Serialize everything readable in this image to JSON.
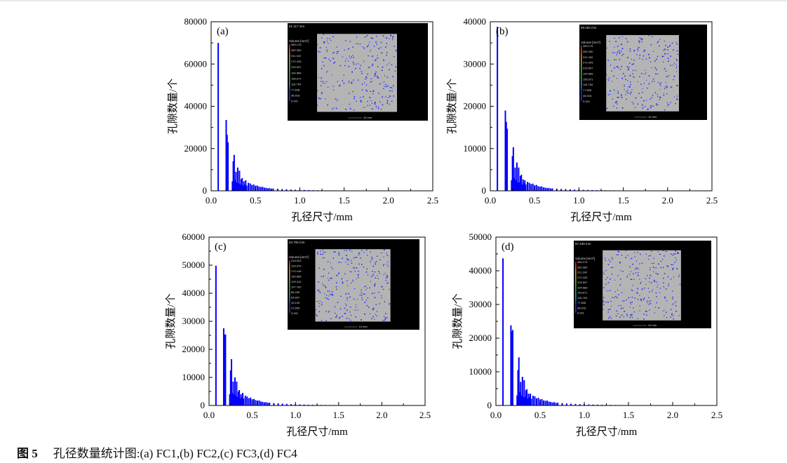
{
  "figure": {
    "caption_label": "图 5",
    "caption_text": "孔径数量统计图:(a) FC1,(b) FC2,(c) FC3,(d) FC4"
  },
  "colors": {
    "bar": "#0000ff",
    "axis": "#000000",
    "inset_bg": "#000000",
    "sample": "#b4b4b4",
    "pore": "#1e2cff"
  },
  "chart_data": [
    {
      "type": "bar",
      "panel_label": "(a)",
      "xlabel": "孔径尺寸/mm",
      "ylabel": "孔隙数量/个",
      "xlim": [
        0,
        2.5
      ],
      "ylim": [
        0,
        80000
      ],
      "xticks": [
        "0.0",
        "0.5",
        "1.0",
        "1.5",
        "2.0",
        "2.5"
      ],
      "yticks": [
        "0",
        "20000",
        "40000",
        "60000",
        "80000"
      ],
      "x": [
        0.08,
        0.17,
        0.18,
        0.19,
        0.24,
        0.25,
        0.26,
        0.27,
        0.28,
        0.29,
        0.3,
        0.31,
        0.32,
        0.33,
        0.34,
        0.35,
        0.36,
        0.37,
        0.38,
        0.39,
        0.4,
        0.42,
        0.44,
        0.46,
        0.48,
        0.5,
        0.52,
        0.54,
        0.56,
        0.58,
        0.6,
        0.62,
        0.64,
        0.66,
        0.68,
        0.7,
        0.75,
        0.8,
        0.85,
        0.9,
        0.95,
        1.0,
        1.05,
        1.1,
        1.15,
        1.2,
        1.25,
        1.3,
        1.35,
        1.4,
        1.45,
        1.5,
        1.6,
        1.7,
        1.8,
        1.9,
        2.0,
        2.1,
        2.2,
        2.3,
        2.4,
        2.5
      ],
      "values": [
        70000,
        33500,
        26500,
        23000,
        4500,
        14000,
        17000,
        5000,
        9000,
        4000,
        11000,
        3500,
        9500,
        3000,
        5500,
        6000,
        2500,
        4500,
        3000,
        5000,
        2500,
        3800,
        3500,
        2800,
        3000,
        2400,
        2500,
        2000,
        1800,
        1900,
        1500,
        1400,
        1200,
        1300,
        1000,
        1100,
        900,
        800,
        700,
        600,
        500,
        450,
        400,
        350,
        300,
        280,
        250,
        220,
        200,
        180,
        160,
        150,
        120,
        100,
        90,
        80,
        70,
        60,
        50,
        40,
        40,
        30
      ],
      "inset": {
        "header": "61.117 mm",
        "legend_title": "Volume [mm³]",
        "legend_values": [
          "389.176",
          "350.260",
          "311.342",
          "272.425",
          "233.507",
          "194.589",
          "155.671",
          "116.754",
          "77.836",
          "38.918",
          "0.001"
        ],
        "scale": "10 mm"
      }
    },
    {
      "type": "bar",
      "panel_label": "(b)",
      "xlabel": "孔径尺寸/mm",
      "ylabel": "孔隙数量/个",
      "xlim": [
        0,
        2.5
      ],
      "ylim": [
        0,
        40000
      ],
      "xticks": [
        "0.0",
        "0.5",
        "1.0",
        "1.5",
        "2.0",
        "2.5"
      ],
      "yticks": [
        "0",
        "10000",
        "20000",
        "30000",
        "40000"
      ],
      "x": [
        0.08,
        0.17,
        0.18,
        0.19,
        0.24,
        0.25,
        0.26,
        0.27,
        0.28,
        0.29,
        0.3,
        0.31,
        0.32,
        0.33,
        0.34,
        0.35,
        0.36,
        0.37,
        0.38,
        0.39,
        0.4,
        0.42,
        0.44,
        0.46,
        0.48,
        0.5,
        0.52,
        0.54,
        0.56,
        0.58,
        0.6,
        0.62,
        0.64,
        0.66,
        0.68,
        0.7,
        0.75,
        0.8,
        0.85,
        0.9,
        0.95,
        1.0,
        1.05,
        1.1,
        1.15,
        1.2,
        1.25,
        1.3,
        1.35,
        1.4,
        1.45,
        1.5,
        1.6,
        1.7,
        1.8,
        1.9,
        2.0,
        2.1,
        2.2,
        2.3,
        2.4,
        2.5
      ],
      "values": [
        38800,
        19000,
        16300,
        14700,
        2500,
        8200,
        10300,
        3000,
        5500,
        2500,
        6700,
        2000,
        5500,
        2000,
        3500,
        3800,
        1500,
        2700,
        1800,
        2500,
        1500,
        2100,
        1900,
        1600,
        1700,
        1300,
        1400,
        1100,
        1000,
        1050,
        800,
        750,
        650,
        700,
        550,
        600,
        500,
        450,
        400,
        330,
        280,
        250,
        220,
        200,
        170,
        150,
        140,
        120,
        110,
        100,
        90,
        80,
        65,
        55,
        50,
        45,
        40,
        35,
        28,
        22,
        22,
        16
      ],
      "inset": {
        "header": "59.283 mm",
        "legend_title": "Volume [mm³]",
        "legend_values": [
          "389.176",
          "350.260",
          "311.342",
          "272.425",
          "233.507",
          "194.589",
          "155.671",
          "116.754",
          "77.836",
          "38.918",
          "0.001"
        ],
        "scale": "10 mm"
      }
    },
    {
      "type": "bar",
      "panel_label": "(c)",
      "xlabel": "孔径尺寸/mm",
      "ylabel": "孔隙数量/个",
      "xlim": [
        0,
        2.5
      ],
      "ylim": [
        0,
        60000
      ],
      "xticks": [
        "0.0",
        "0.5",
        "1.0",
        "1.5",
        "2.0",
        "2.5"
      ],
      "yticks": [
        "0",
        "10000",
        "20000",
        "30000",
        "40000",
        "50000",
        "60000"
      ],
      "x": [
        0.08,
        0.17,
        0.18,
        0.19,
        0.24,
        0.25,
        0.26,
        0.27,
        0.28,
        0.29,
        0.3,
        0.31,
        0.32,
        0.33,
        0.34,
        0.35,
        0.36,
        0.37,
        0.38,
        0.39,
        0.4,
        0.42,
        0.44,
        0.46,
        0.48,
        0.5,
        0.52,
        0.54,
        0.56,
        0.58,
        0.6,
        0.62,
        0.64,
        0.66,
        0.68,
        0.7,
        0.75,
        0.8,
        0.85,
        0.9,
        0.95,
        1.0,
        1.05,
        1.1,
        1.15,
        1.2,
        1.25,
        1.3,
        1.35,
        1.4,
        1.45,
        1.5,
        1.6,
        1.7,
        1.8,
        1.9,
        2.0,
        2.1,
        2.2,
        2.3,
        2.4,
        2.5
      ],
      "values": [
        49800,
        27500,
        25300,
        25300,
        4000,
        12500,
        16500,
        4500,
        8500,
        4000,
        10000,
        3500,
        8500,
        3000,
        5000,
        5500,
        2500,
        4000,
        3000,
        4500,
        2500,
        3500,
        3200,
        2600,
        2800,
        2200,
        2300,
        1900,
        1700,
        1800,
        1400,
        1300,
        1100,
        1200,
        950,
        1000,
        850,
        750,
        650,
        560,
        470,
        420,
        380,
        330,
        280,
        260,
        230,
        200,
        190,
        170,
        150,
        140,
        110,
        95,
        85,
        75,
        65,
        55,
        45,
        38,
        36,
        28
      ],
      "inset": {
        "header": "64.705 mm",
        "legend_title": "Volume [mm³]",
        "legend_values": [
          "215.523",
          "193.970",
          "172.418",
          "150.866",
          "129.314",
          "107.762",
          "86.209",
          "64.657",
          "43.105",
          "21.553",
          "0.001"
        ],
        "scale": "10 mm"
      }
    },
    {
      "type": "bar",
      "panel_label": "(d)",
      "xlabel": "孔径尺寸/mm",
      "ylabel": "孔隙数量/个",
      "xlim": [
        0,
        2.5
      ],
      "ylim": [
        0,
        50000
      ],
      "xticks": [
        "0.0",
        "0.5",
        "1.0",
        "1.5",
        "2.0",
        "2.5"
      ],
      "yticks": [
        "0",
        "10000",
        "20000",
        "30000",
        "40000",
        "50000"
      ],
      "x": [
        0.08,
        0.17,
        0.18,
        0.19,
        0.24,
        0.25,
        0.26,
        0.27,
        0.28,
        0.29,
        0.3,
        0.31,
        0.32,
        0.33,
        0.34,
        0.35,
        0.36,
        0.37,
        0.38,
        0.39,
        0.4,
        0.42,
        0.44,
        0.46,
        0.48,
        0.5,
        0.52,
        0.54,
        0.56,
        0.58,
        0.6,
        0.62,
        0.64,
        0.66,
        0.68,
        0.7,
        0.75,
        0.8,
        0.85,
        0.9,
        0.95,
        1.0,
        1.05,
        1.1,
        1.15,
        1.2,
        1.25,
        1.3,
        1.35,
        1.4,
        1.45,
        1.5,
        1.6,
        1.7,
        1.8,
        1.9,
        2.0,
        2.1,
        2.2,
        2.3,
        2.4,
        2.5
      ],
      "values": [
        43700,
        23800,
        22000,
        22400,
        3000,
        10500,
        14300,
        4000,
        7000,
        3000,
        8500,
        2500,
        7500,
        2500,
        4500,
        4800,
        2000,
        3500,
        2500,
        3500,
        2000,
        2900,
        2700,
        2100,
        2300,
        1800,
        1900,
        1500,
        1400,
        1450,
        1150,
        1050,
        900,
        1000,
        750,
        850,
        700,
        600,
        530,
        450,
        380,
        340,
        300,
        270,
        230,
        210,
        190,
        170,
        150,
        140,
        120,
        110,
        90,
        75,
        68,
        60,
        52,
        45,
        38,
        30,
        30,
        22
      ],
      "inset": {
        "header": "57.449 mm",
        "legend_title": "Volume [mm³]",
        "legend_values": [
          "389.176",
          "350.260",
          "311.342",
          "272.425",
          "233.507",
          "194.589",
          "155.671",
          "116.754",
          "77.836",
          "38.918",
          "0.001"
        ],
        "scale": "10 mm"
      }
    }
  ]
}
